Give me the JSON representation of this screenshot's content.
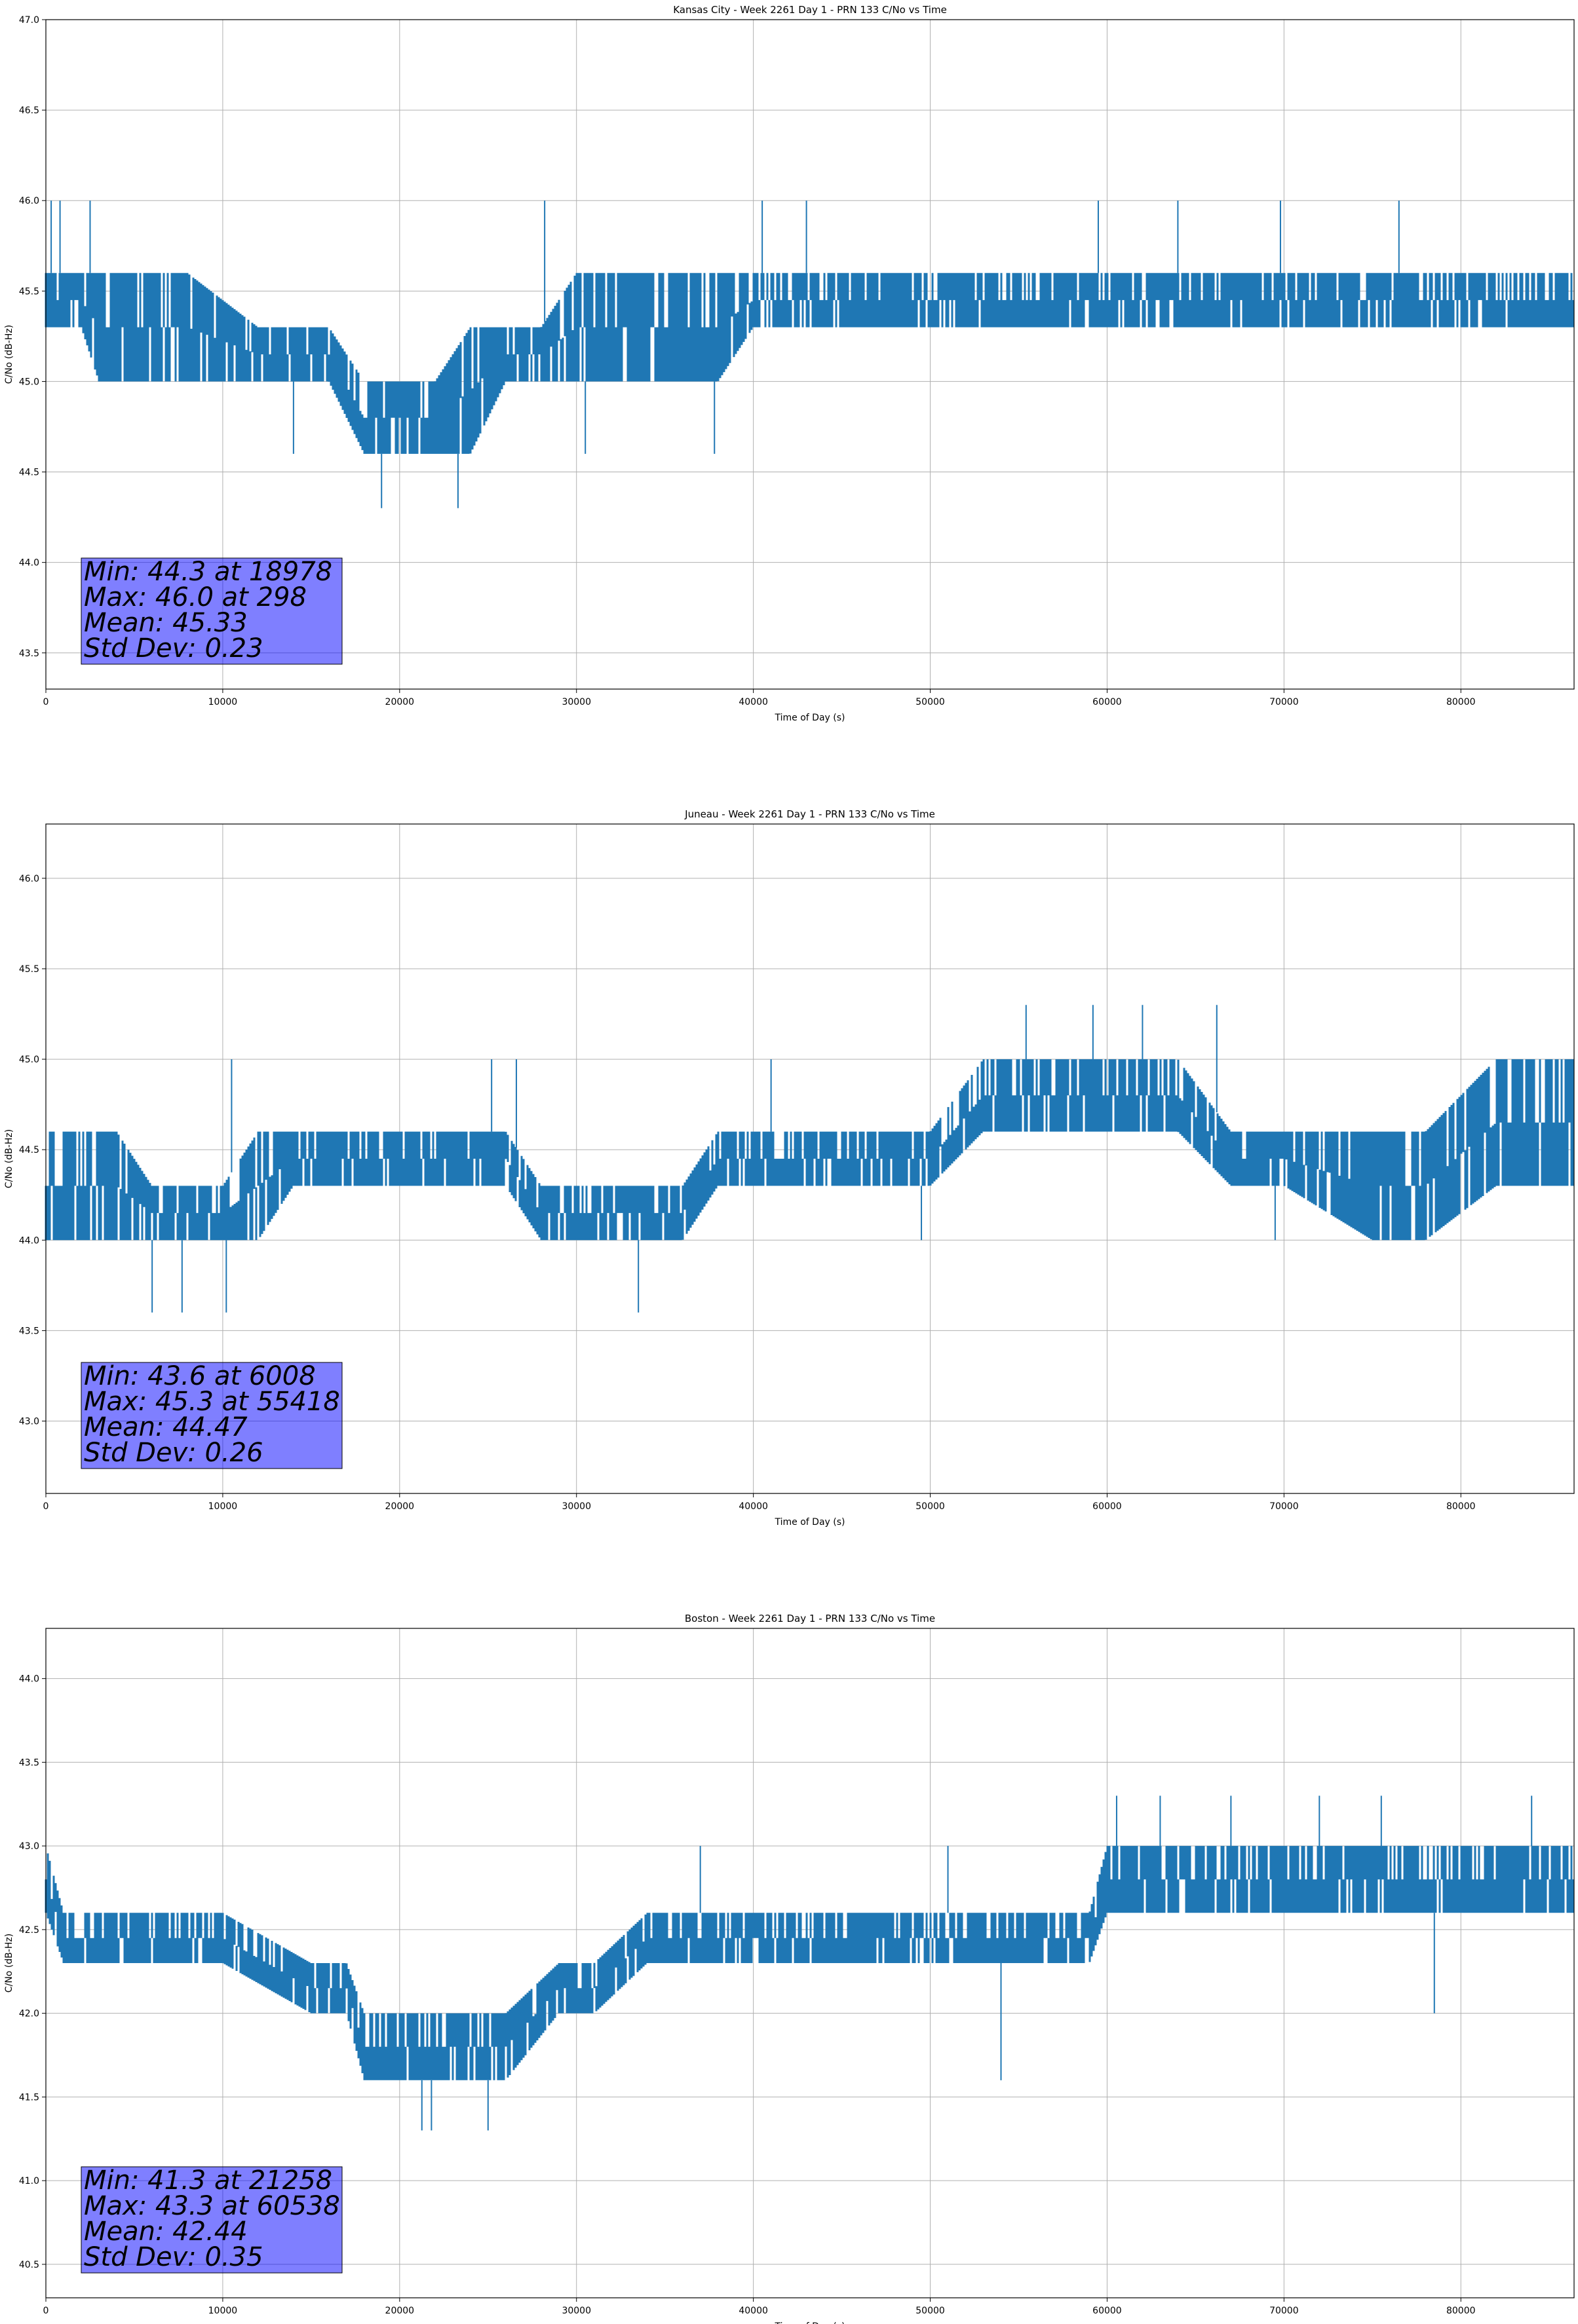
{
  "chart_data": [
    {
      "type": "line",
      "title": "Kansas City - Week 2261 Day 1 - PRN 133 C/No vs Time",
      "xlabel": "Time of Day (s)",
      "ylabel": "C/No (dB-Hz)",
      "xlim": [
        0,
        86400
      ],
      "ylim": [
        43.3,
        47.0
      ],
      "xticks": [
        0,
        10000,
        20000,
        30000,
        40000,
        50000,
        60000,
        70000,
        80000
      ],
      "yticks": [
        43.5,
        44.0,
        44.5,
        45.0,
        45.5,
        46.0,
        46.5,
        47.0
      ],
      "grid": true,
      "color": "#1f77b4",
      "series": [
        {
          "x": [
            0,
            2000,
            3000,
            8000,
            12000,
            14000,
            16000,
            18000,
            20000,
            22000,
            24000,
            26000,
            28000,
            30000,
            32000,
            35000,
            38000,
            40000,
            45000,
            50000,
            55000,
            60000,
            65000,
            70000,
            75000,
            80000,
            86400
          ],
          "band_low": [
            45.3,
            45.3,
            45.0,
            45.0,
            45.0,
            45.0,
            45.0,
            44.6,
            44.6,
            44.6,
            44.6,
            45.0,
            45.0,
            45.0,
            45.0,
            45.0,
            45.0,
            45.3,
            45.3,
            45.3,
            45.3,
            45.3,
            45.3,
            45.3,
            45.3,
            45.3,
            45.3
          ],
          "band_high": [
            45.6,
            45.6,
            45.6,
            45.6,
            45.3,
            45.3,
            45.3,
            45.0,
            45.0,
            45.0,
            45.3,
            45.3,
            45.3,
            45.6,
            45.6,
            45.6,
            45.6,
            45.6,
            45.6,
            45.6,
            45.6,
            45.6,
            45.6,
            45.6,
            45.6,
            45.6,
            45.6
          ],
          "spikes_up": [
            [
              300,
              46.0
            ],
            [
              800,
              46.0
            ],
            [
              2500,
              46.0
            ],
            [
              28200,
              46.0
            ],
            [
              40500,
              46.0
            ],
            [
              43000,
              46.0
            ],
            [
              59500,
              46.0
            ],
            [
              64000,
              46.0
            ],
            [
              69800,
              46.0
            ],
            [
              76500,
              46.0
            ]
          ],
          "spikes_down": [
            [
              18978,
              44.3
            ],
            [
              23300,
              44.3
            ],
            [
              37800,
              44.6
            ],
            [
              14000,
              44.6
            ],
            [
              30500,
              44.6
            ]
          ]
        }
      ],
      "stats": [
        "Min: 44.3 at 18978",
        "Max: 46.0 at 298",
        "Mean: 45.33",
        "Std Dev: 0.23"
      ]
    },
    {
      "type": "line",
      "title": "Juneau - Week 2261 Day 1 - PRN 133 C/No vs Time",
      "xlabel": "Time of Day (s)",
      "ylabel": "C/No (dB-Hz)",
      "xlim": [
        0,
        86400
      ],
      "ylim": [
        42.6,
        46.3
      ],
      "xticks": [
        0,
        10000,
        20000,
        30000,
        40000,
        50000,
        60000,
        70000,
        80000
      ],
      "yticks": [
        43.0,
        43.5,
        44.0,
        44.5,
        45.0,
        45.5,
        46.0
      ],
      "grid": true,
      "color": "#1f77b4",
      "series": [
        {
          "x": [
            0,
            4000,
            6000,
            10000,
            12000,
            14000,
            20000,
            26000,
            28000,
            32000,
            36000,
            38000,
            40000,
            46000,
            50000,
            53000,
            56000,
            60000,
            64000,
            67000,
            70000,
            75000,
            78000,
            82000,
            86400
          ],
          "band_low": [
            44.0,
            44.0,
            44.0,
            44.0,
            44.0,
            44.3,
            44.3,
            44.3,
            44.0,
            44.0,
            44.0,
            44.3,
            44.3,
            44.3,
            44.3,
            44.6,
            44.6,
            44.6,
            44.6,
            44.3,
            44.3,
            44.0,
            44.0,
            44.3,
            44.3
          ],
          "band_high": [
            44.6,
            44.6,
            44.3,
            44.3,
            44.6,
            44.6,
            44.6,
            44.6,
            44.3,
            44.3,
            44.3,
            44.6,
            44.6,
            44.6,
            44.6,
            45.0,
            45.0,
            45.0,
            45.0,
            44.6,
            44.6,
            44.6,
            44.6,
            45.0,
            45.0
          ],
          "spikes_up": [
            [
              10500,
              45.0
            ],
            [
              25200,
              45.0
            ],
            [
              26600,
              45.0
            ],
            [
              41000,
              45.0
            ],
            [
              55418,
              45.3
            ],
            [
              59200,
              45.3
            ],
            [
              62000,
              45.3
            ],
            [
              66200,
              45.3
            ]
          ],
          "spikes_down": [
            [
              6008,
              43.6
            ],
            [
              7700,
              43.6
            ],
            [
              10200,
              43.6
            ],
            [
              33500,
              43.6
            ],
            [
              49500,
              44.0
            ],
            [
              69500,
              44.0
            ]
          ]
        }
      ],
      "stats": [
        "Min: 43.6 at 6008",
        "Max: 45.3 at 55418",
        "Mean: 44.47",
        "Std Dev: 0.26"
      ]
    },
    {
      "type": "line",
      "title": "Boston - Week 2261 Day 1 - PRN 133 C/No vs Time",
      "xlabel": "Time of Day (s)",
      "ylabel": "C/No (dB-Hz)",
      "xlim": [
        0,
        86400
      ],
      "ylim": [
        40.3,
        44.3
      ],
      "xticks": [
        0,
        10000,
        20000,
        30000,
        40000,
        50000,
        60000,
        70000,
        80000
      ],
      "yticks": [
        40.5,
        41.0,
        41.5,
        42.0,
        42.5,
        43.0,
        43.5,
        44.0
      ],
      "grid": true,
      "color": "#1f77b4",
      "series": [
        {
          "x": [
            0,
            1000,
            5000,
            10000,
            15000,
            17000,
            18000,
            22000,
            26000,
            29000,
            31000,
            34000,
            38000,
            45000,
            50000,
            55000,
            59000,
            60000,
            65000,
            70000,
            75000,
            80000,
            86400
          ],
          "band_low": [
            42.6,
            42.3,
            42.3,
            42.3,
            42.0,
            42.0,
            41.6,
            41.6,
            41.6,
            42.0,
            42.0,
            42.3,
            42.3,
            42.3,
            42.3,
            42.3,
            42.3,
            42.6,
            42.6,
            42.6,
            42.6,
            42.6,
            42.6
          ],
          "band_high": [
            43.0,
            42.6,
            42.6,
            42.6,
            42.3,
            42.3,
            42.0,
            42.0,
            42.0,
            42.3,
            42.3,
            42.6,
            42.6,
            42.6,
            42.6,
            42.6,
            42.6,
            43.0,
            43.0,
            43.0,
            43.0,
            43.0,
            43.0
          ],
          "spikes_up": [
            [
              37000,
              43.0
            ],
            [
              51000,
              43.0
            ],
            [
              60538,
              43.3
            ],
            [
              63000,
              43.3
            ],
            [
              67000,
              43.3
            ],
            [
              72000,
              43.3
            ],
            [
              75500,
              43.3
            ],
            [
              84000,
              43.3
            ]
          ],
          "spikes_down": [
            [
              21258,
              41.3
            ],
            [
              21800,
              41.3
            ],
            [
              25000,
              41.3
            ],
            [
              54000,
              41.6
            ],
            [
              78500,
              42.0
            ]
          ]
        }
      ],
      "stats": [
        "Min: 41.3 at 21258",
        "Max: 43.3 at 60538",
        "Mean: 42.44",
        "Std Dev: 0.35"
      ]
    }
  ]
}
